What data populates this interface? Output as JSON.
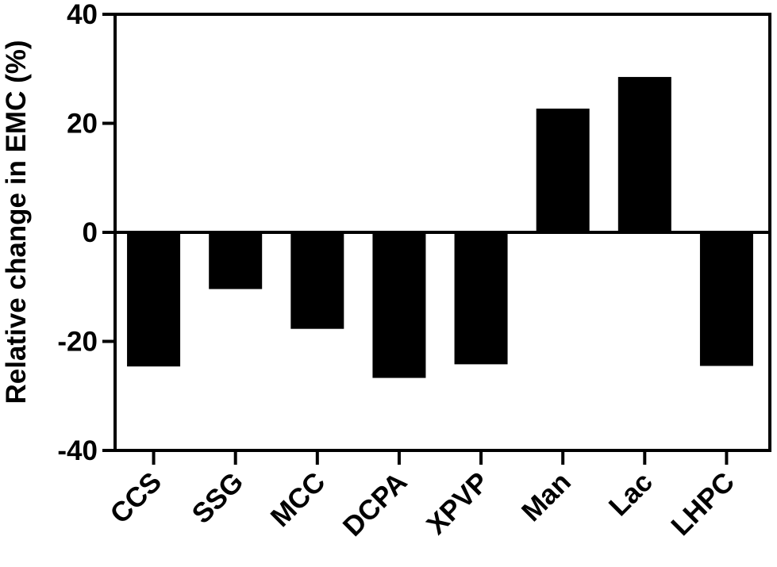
{
  "chart_data": {
    "type": "bar",
    "title": "",
    "xlabel": "",
    "ylabel": "Relative change in EMC (%)",
    "categories": [
      "CCS",
      "SSG",
      "MCC",
      "DCPA",
      "XPVP",
      "Man",
      "Lac",
      "LHPC"
    ],
    "values": [
      -24.6,
      -10.4,
      -17.7,
      -26.7,
      -24.2,
      22.7,
      28.5,
      -24.5
    ],
    "ylim": [
      -40,
      40
    ],
    "yticks": [
      -40,
      -20,
      0,
      20,
      40
    ],
    "grid": false,
    "legend": "none",
    "bar_color": "#000000"
  }
}
